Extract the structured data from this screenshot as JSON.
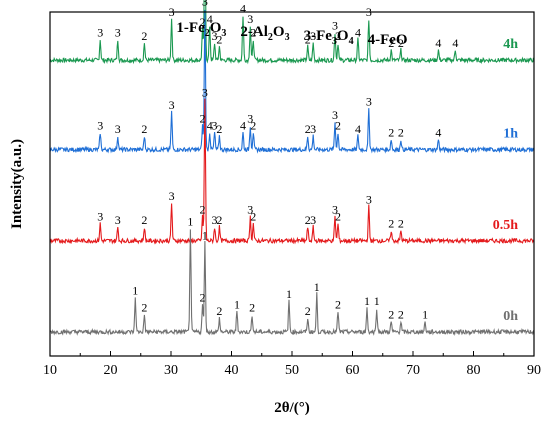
{
  "chart_data": {
    "type": "line",
    "xlabel": "2θ/(°)",
    "ylabel": "Intensity(a.u.)",
    "xlim": [
      10,
      90
    ],
    "x_ticks": [
      10,
      20,
      30,
      40,
      50,
      60,
      70,
      80,
      90
    ],
    "y_ticks_shown": false,
    "grid": false,
    "legend": {
      "placement": "top-center",
      "entries": [
        {
          "number": "1",
          "formula": "Fe",
          "sub1": "2",
          "mid": "O",
          "sub2": "3"
        },
        {
          "number": "2",
          "formula": "Al",
          "sub1": "2",
          "mid": "O",
          "sub2": "3"
        },
        {
          "number": "3",
          "formula": "Fe",
          "sub1": "3",
          "mid": "O",
          "sub2": "4"
        },
        {
          "number": "4",
          "formula": "FeO",
          "sub1": "",
          "mid": "",
          "sub2": ""
        }
      ]
    },
    "series": [
      {
        "name": "4h",
        "color": "#1a9850",
        "baseline": 0.86,
        "peaks": [
          {
            "x": 18.3,
            "h": 0.06,
            "label": "3"
          },
          {
            "x": 21.2,
            "h": 0.06,
            "label": "3"
          },
          {
            "x": 25.6,
            "h": 0.05,
            "label": "2"
          },
          {
            "x": 30.1,
            "h": 0.12,
            "label": "3"
          },
          {
            "x": 35.2,
            "h": 0.09,
            "label": "2"
          },
          {
            "x": 35.6,
            "h": 0.42,
            "label": "3"
          },
          {
            "x": 36.4,
            "h": 0.1,
            "label": "4"
          },
          {
            "x": 37.2,
            "h": 0.05,
            "label": "3"
          },
          {
            "x": 38.0,
            "h": 0.04,
            "label": "2"
          },
          {
            "x": 41.9,
            "h": 0.13,
            "label": "4"
          },
          {
            "x": 43.1,
            "h": 0.1,
            "label": "3"
          },
          {
            "x": 43.6,
            "h": 0.06,
            "label": "2"
          },
          {
            "x": 52.6,
            "h": 0.04,
            "label": "2"
          },
          {
            "x": 53.5,
            "h": 0.05,
            "label": "3"
          },
          {
            "x": 57.1,
            "h": 0.08,
            "label": "3"
          },
          {
            "x": 57.6,
            "h": 0.05,
            "label": "2"
          },
          {
            "x": 60.9,
            "h": 0.06,
            "label": "4"
          },
          {
            "x": 62.7,
            "h": 0.12,
            "label": "3"
          },
          {
            "x": 66.4,
            "h": 0.03,
            "label": "2"
          },
          {
            "x": 68.0,
            "h": 0.03,
            "label": "2"
          },
          {
            "x": 74.2,
            "h": 0.03,
            "label": "4"
          },
          {
            "x": 77.0,
            "h": 0.03,
            "label": "4"
          }
        ]
      },
      {
        "name": "1h",
        "color": "#1f6fd6",
        "baseline": 0.6,
        "peaks": [
          {
            "x": 18.3,
            "h": 0.05,
            "label": "3"
          },
          {
            "x": 21.2,
            "h": 0.04,
            "label": "3"
          },
          {
            "x": 25.6,
            "h": 0.04,
            "label": "2"
          },
          {
            "x": 30.1,
            "h": 0.11,
            "label": "3"
          },
          {
            "x": 35.2,
            "h": 0.07,
            "label": "2"
          },
          {
            "x": 35.6,
            "h": 0.41,
            "label": "3"
          },
          {
            "x": 36.4,
            "h": 0.05,
            "label": "4"
          },
          {
            "x": 37.2,
            "h": 0.05,
            "label": "3"
          },
          {
            "x": 38.0,
            "h": 0.04,
            "label": "2"
          },
          {
            "x": 41.9,
            "h": 0.05,
            "label": "4"
          },
          {
            "x": 43.1,
            "h": 0.07,
            "label": "3"
          },
          {
            "x": 43.6,
            "h": 0.05,
            "label": "2"
          },
          {
            "x": 52.6,
            "h": 0.04,
            "label": "2"
          },
          {
            "x": 53.5,
            "h": 0.04,
            "label": "3"
          },
          {
            "x": 57.1,
            "h": 0.08,
            "label": "3"
          },
          {
            "x": 57.6,
            "h": 0.05,
            "label": "2"
          },
          {
            "x": 60.9,
            "h": 0.04,
            "label": "4"
          },
          {
            "x": 62.7,
            "h": 0.12,
            "label": "3"
          },
          {
            "x": 66.4,
            "h": 0.03,
            "label": "2"
          },
          {
            "x": 68.0,
            "h": 0.03,
            "label": "2"
          },
          {
            "x": 74.2,
            "h": 0.03,
            "label": "4"
          }
        ]
      },
      {
        "name": "0.5h",
        "color": "#e41a1c",
        "baseline": 0.335,
        "peaks": [
          {
            "x": 18.3,
            "h": 0.05,
            "label": "3"
          },
          {
            "x": 21.2,
            "h": 0.04,
            "label": "3"
          },
          {
            "x": 25.6,
            "h": 0.04,
            "label": "2"
          },
          {
            "x": 30.1,
            "h": 0.11,
            "label": "3"
          },
          {
            "x": 35.2,
            "h": 0.07,
            "label": "2"
          },
          {
            "x": 35.6,
            "h": 0.41,
            "label": "3"
          },
          {
            "x": 37.2,
            "h": 0.04,
            "label": "3"
          },
          {
            "x": 38.0,
            "h": 0.04,
            "label": "2"
          },
          {
            "x": 43.1,
            "h": 0.07,
            "label": "3"
          },
          {
            "x": 43.6,
            "h": 0.05,
            "label": "2"
          },
          {
            "x": 52.6,
            "h": 0.04,
            "label": "2"
          },
          {
            "x": 53.5,
            "h": 0.04,
            "label": "3"
          },
          {
            "x": 57.1,
            "h": 0.07,
            "label": "3"
          },
          {
            "x": 57.6,
            "h": 0.05,
            "label": "2"
          },
          {
            "x": 62.7,
            "h": 0.1,
            "label": "3"
          },
          {
            "x": 66.4,
            "h": 0.03,
            "label": "2"
          },
          {
            "x": 68.0,
            "h": 0.03,
            "label": "2"
          }
        ]
      },
      {
        "name": "0h",
        "color": "#707070",
        "baseline": 0.07,
        "peaks": [
          {
            "x": 24.1,
            "h": 0.1,
            "label": "1"
          },
          {
            "x": 25.6,
            "h": 0.05,
            "label": "2"
          },
          {
            "x": 33.2,
            "h": 0.3,
            "label": "1"
          },
          {
            "x": 35.2,
            "h": 0.08,
            "label": "2"
          },
          {
            "x": 35.6,
            "h": 0.26,
            "label": "1"
          },
          {
            "x": 38.0,
            "h": 0.04,
            "label": "2"
          },
          {
            "x": 40.9,
            "h": 0.06,
            "label": "1"
          },
          {
            "x": 43.4,
            "h": 0.05,
            "label": "2"
          },
          {
            "x": 49.5,
            "h": 0.09,
            "label": "1"
          },
          {
            "x": 52.6,
            "h": 0.04,
            "label": "2"
          },
          {
            "x": 54.1,
            "h": 0.11,
            "label": "1"
          },
          {
            "x": 57.6,
            "h": 0.06,
            "label": "2"
          },
          {
            "x": 62.4,
            "h": 0.07,
            "label": "1"
          },
          {
            "x": 64.0,
            "h": 0.07,
            "label": "1"
          },
          {
            "x": 66.4,
            "h": 0.03,
            "label": "2"
          },
          {
            "x": 68.0,
            "h": 0.03,
            "label": "2"
          },
          {
            "x": 72.0,
            "h": 0.03,
            "label": "1"
          }
        ]
      }
    ]
  }
}
